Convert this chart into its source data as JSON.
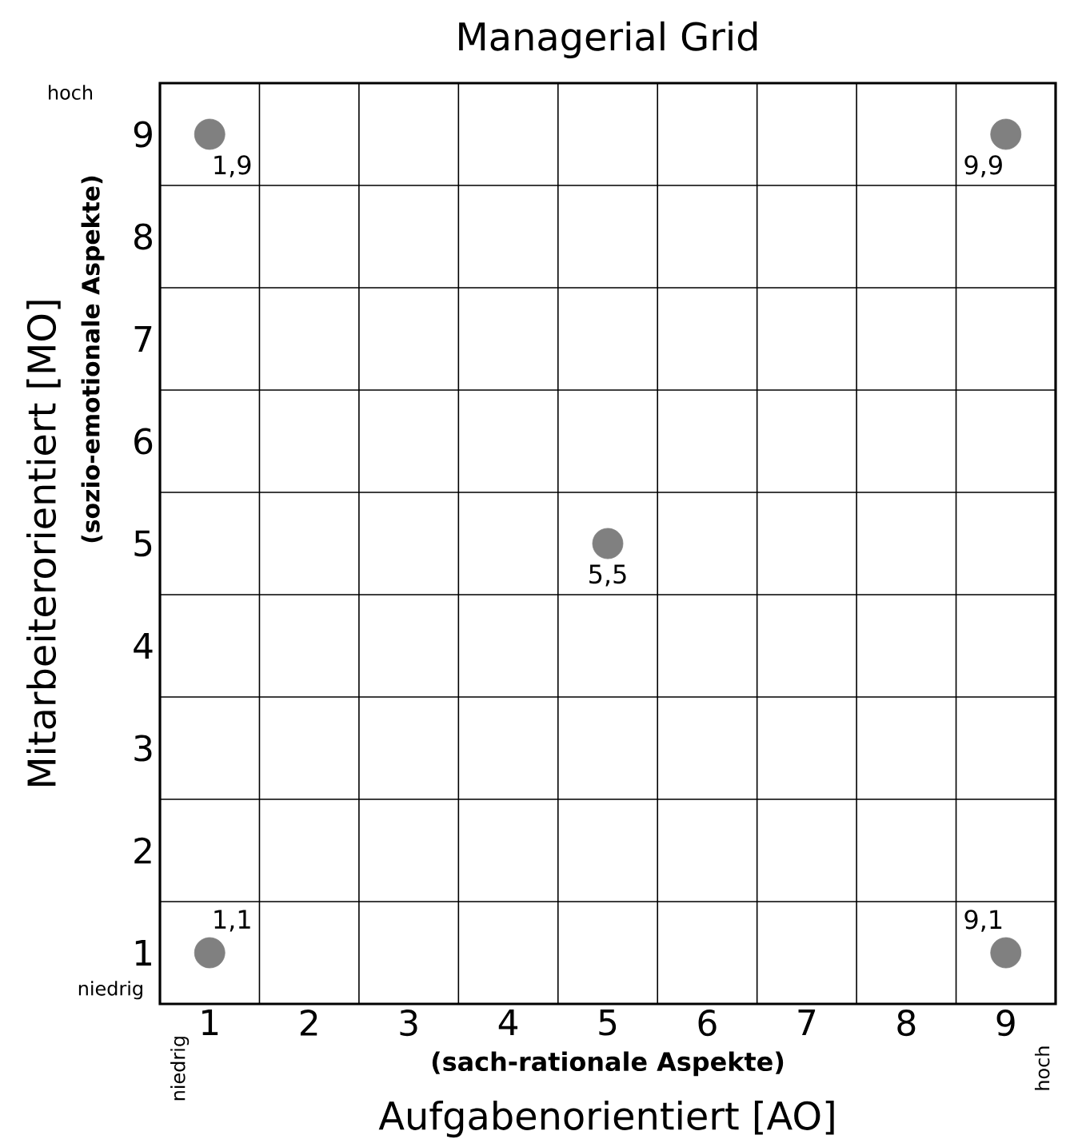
{
  "chart_data": {
    "type": "scatter",
    "title": "Managerial Grid",
    "xlabel": "Aufgabenorientiert [AO]",
    "ylabel": "Mitarbeiterorientiert [MO]",
    "x": [
      1,
      9,
      5,
      1,
      9
    ],
    "values": [
      9,
      9,
      5,
      1,
      1
    ],
    "color": "#808080",
    "marker": "circle",
    "grid": true,
    "xlim": [
      0.5,
      9.5
    ],
    "ylim": [
      0.5,
      9.5
    ],
    "xticks": [
      1,
      2,
      3,
      4,
      5,
      6,
      7,
      8,
      9,
      {
        "value": 1.5,
        "label": null
      },
      {
        "value": 2.5,
        "label": null
      },
      {
        "value": 3.5,
        "label": null
      },
      {
        "value": 4.5,
        "label": null
      },
      {
        "value": 5.5,
        "label": null
      },
      {
        "value": 6.5,
        "label": null
      },
      {
        "value": 7.5,
        "label": null
      },
      {
        "value": 8.5,
        "label": null
      }
    ],
    "yticks": [
      1,
      2,
      3,
      4,
      5,
      6,
      7,
      8,
      9,
      {
        "value": 1.5,
        "label": null
      },
      {
        "value": 2.5,
        "label": null
      },
      {
        "value": 3.5,
        "label": null
      },
      {
        "value": 4.5,
        "label": null
      },
      {
        "value": 5.5,
        "label": null
      },
      {
        "value": 6.5,
        "label": null
      },
      {
        "value": 7.5,
        "label": null
      },
      {
        "value": 8.5,
        "label": null
      }
    ],
    "annotations": [
      "hoch",
      "niedrig",
      "niedrig",
      "hoch",
      "(sozio-emotionale Aspekte)",
      "(sach-rationale Aspekte)",
      {
        "text": "1,9",
        "x": 1,
        "y": 9
      },
      {
        "text": "9,9",
        "x": 9,
        "y": 9
      },
      {
        "text": "5,5",
        "x": 5,
        "y": 5
      },
      {
        "text": "1,1",
        "x": 1,
        "y": 1
      },
      {
        "text": "9,1",
        "x": 9,
        "y": 1
      }
    ]
  }
}
